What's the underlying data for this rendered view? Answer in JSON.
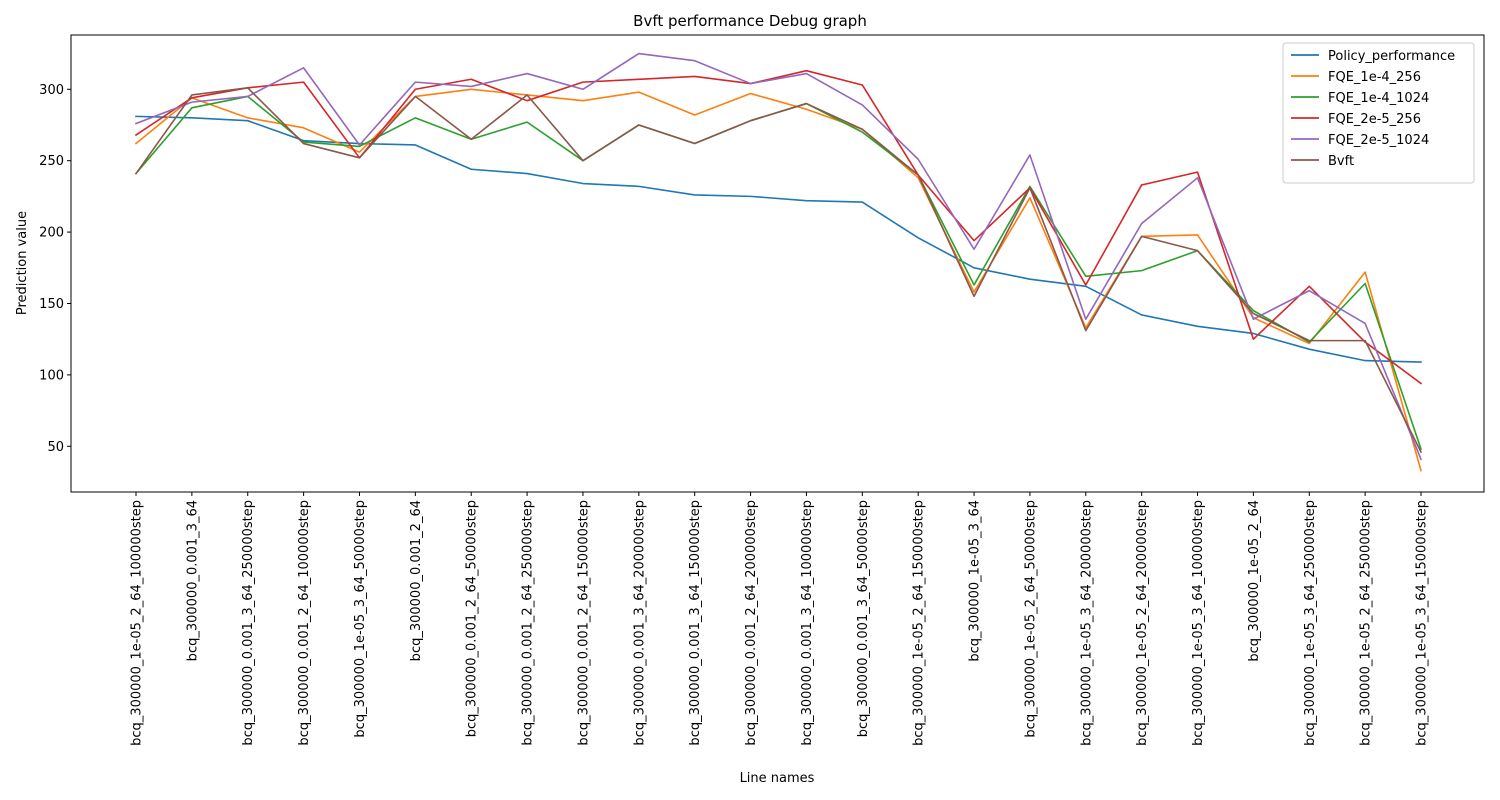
{
  "chart_data": {
    "type": "line",
    "title": "Bvft performance Debug graph",
    "xlabel": "Line names",
    "ylabel": "Prediction value",
    "ylim": [
      18,
      338
    ],
    "yticks": [
      50,
      100,
      150,
      200,
      250,
      300
    ],
    "grid": false,
    "legend_position": "top-right",
    "categories": [
      "bcq_300000_1e-05_2_64_100000step",
      "bcq_300000_0.001_3_64",
      "bcq_300000_0.001_3_64_250000step",
      "bcq_300000_0.001_2_64_100000step",
      "bcq_300000_1e-05_3_64_50000step",
      "bcq_300000_0.001_2_64",
      "bcq_300000_0.001_2_64_50000step",
      "bcq_300000_0.001_2_64_250000step",
      "bcq_300000_0.001_2_64_150000step",
      "bcq_300000_0.001_3_64_200000step",
      "bcq_300000_0.001_3_64_150000step",
      "bcq_300000_0.001_2_64_200000step",
      "bcq_300000_0.001_3_64_100000step",
      "bcq_300000_0.001_3_64_50000step",
      "bcq_300000_1e-05_2_64_150000step",
      "bcq_300000_1e-05_3_64",
      "bcq_300000_1e-05_2_64_50000step",
      "bcq_300000_1e-05_3_64_200000step",
      "bcq_300000_1e-05_2_64_200000step",
      "bcq_300000_1e-05_3_64_100000step",
      "bcq_300000_1e-05_2_64",
      "bcq_300000_1e-05_3_64_250000step",
      "bcq_300000_1e-05_2_64_250000step",
      "bcq_300000_1e-05_3_64_150000step"
    ],
    "series": [
      {
        "name": "Policy_performance",
        "color": "#1f77b4",
        "values": [
          281,
          280,
          278,
          264,
          262,
          261,
          244,
          241,
          234,
          232,
          226,
          225,
          222,
          221,
          196,
          175,
          167,
          162,
          142,
          134,
          129,
          118,
          110,
          109
        ]
      },
      {
        "name": "FQE_1e-4_256",
        "color": "#ff7f0e",
        "values": [
          262,
          294,
          280,
          273,
          256,
          295,
          300,
          296,
          292,
          298,
          282,
          297,
          286,
          272,
          238,
          158,
          224,
          133,
          197,
          198,
          140,
          122,
          172,
          33
        ]
      },
      {
        "name": "FQE_1e-4_1024",
        "color": "#2ca02c",
        "values": [
          241,
          287,
          295,
          263,
          260,
          280,
          265,
          277,
          250,
          275,
          262,
          278,
          290,
          270,
          240,
          163,
          232,
          169,
          173,
          187,
          145,
          123,
          164,
          48
        ]
      },
      {
        "name": "FQE_2e-5_256",
        "color": "#d62728",
        "values": [
          268,
          294,
          301,
          305,
          252,
          300,
          307,
          292,
          305,
          307,
          309,
          304,
          313,
          303,
          240,
          194,
          231,
          163,
          233,
          242,
          125,
          162,
          123,
          94
        ]
      },
      {
        "name": "FQE_2e-5_1024",
        "color": "#9467bd",
        "values": [
          276,
          291,
          295,
          315,
          261,
          305,
          302,
          311,
          300,
          325,
          320,
          304,
          311,
          289,
          251,
          188,
          254,
          139,
          206,
          238,
          139,
          159,
          136,
          41
        ]
      },
      {
        "name": "Bvft",
        "color": "#8c564b",
        "values": [
          241,
          296,
          301,
          262,
          252,
          295,
          265,
          296,
          250,
          275,
          262,
          278,
          290,
          272,
          240,
          155,
          231,
          131,
          197,
          187,
          143,
          124,
          124,
          46
        ]
      }
    ]
  }
}
